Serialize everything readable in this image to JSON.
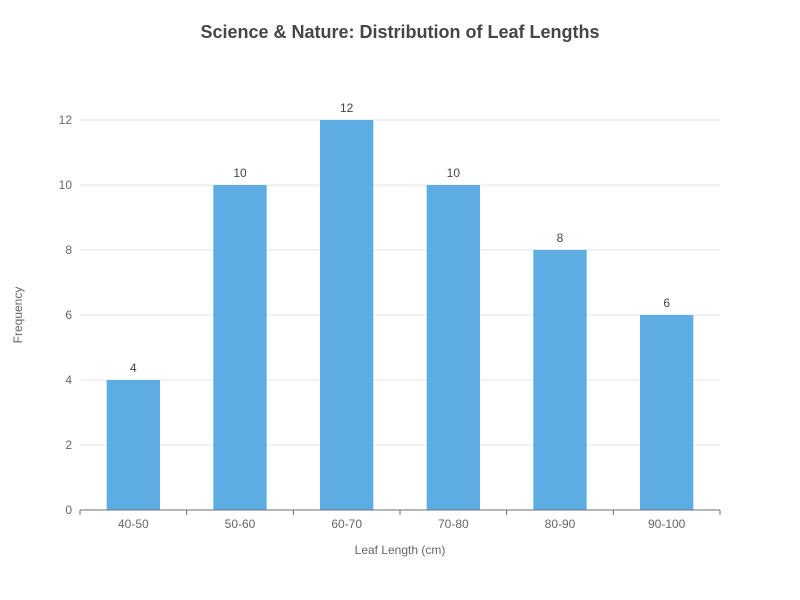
{
  "chart_data": {
    "type": "bar",
    "title": "Science & Nature: Distribution of Leaf Lengths",
    "xlabel": "Leaf Length (cm)",
    "ylabel": "Frequency",
    "categories": [
      "40-50",
      "50-60",
      "60-70",
      "70-80",
      "80-90",
      "90-100"
    ],
    "values": [
      4,
      10,
      12,
      10,
      8,
      6
    ],
    "ylim": [
      0,
      12
    ],
    "yticks": [
      0,
      2,
      4,
      6,
      8,
      10,
      12
    ],
    "grid": true,
    "data_labels": true,
    "bar_color": "#5dade2"
  }
}
